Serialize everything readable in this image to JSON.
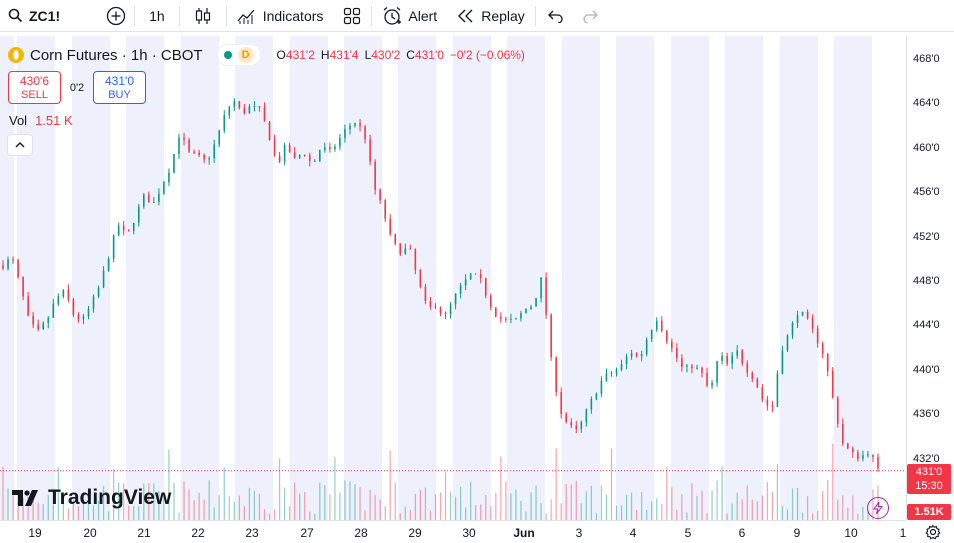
{
  "toolbar": {
    "symbol": "ZC1!",
    "interval": "1h",
    "indicators_label": "Indicators",
    "alert_label": "Alert",
    "replay_label": "Replay"
  },
  "legend": {
    "title": "Corn Futures · 1h · CBOT",
    "market_status_badge": "D",
    "open_key": "O",
    "open": "431'2",
    "high_key": "H",
    "high": "431'4",
    "low_key": "L",
    "low": "430'2",
    "close_key": "C",
    "close": "431'0",
    "change": "−0'2 (−0.06%)"
  },
  "trade": {
    "sell_price": "430'6",
    "sell_label": "SELL",
    "spread": "0'2",
    "buy_price": "431'0",
    "buy_label": "BUY"
  },
  "volume": {
    "label": "Vol",
    "value": "1.51 K"
  },
  "price_axis": {
    "ticks": [
      "468'0",
      "464'0",
      "460'0",
      "456'0",
      "452'0",
      "448'0",
      "444'0",
      "440'0",
      "436'0",
      "432'0"
    ],
    "last_price": "431'0",
    "countdown": "15:30",
    "volume_badge": "1.51K"
  },
  "time_axis": {
    "ticks": [
      "19",
      "20",
      "21",
      "22",
      "23",
      "27",
      "28",
      "29",
      "30",
      "Jun",
      "3",
      "4",
      "5",
      "6",
      "9",
      "10",
      "1"
    ]
  },
  "branding": {
    "logo_text": "TradingView"
  },
  "colors": {
    "up": "#089981",
    "down": "#f23645",
    "session_shade": "#eef1fb",
    "accent": "#2962ff"
  },
  "chart_data": {
    "type": "candlestick",
    "symbol": "ZC1!",
    "interval": "1h",
    "ylim": [
      428,
      469
    ],
    "x": [
      "19",
      "20",
      "21",
      "22",
      "23",
      "27",
      "28",
      "29",
      "30",
      "Jun",
      "3",
      "4",
      "5",
      "6",
      "9",
      "10"
    ],
    "close_path": [
      449.5,
      450.2,
      447.5,
      444.2,
      443.5,
      444.6,
      446.5,
      447.2,
      445.0,
      444.5,
      446.0,
      447.8,
      450.5,
      453.2,
      452.0,
      454.0,
      455.8,
      455.0,
      456.8,
      458.5,
      461.5,
      459.6,
      459.3,
      458.8,
      460.5,
      462.8,
      464.5,
      463.2,
      463.8,
      463.5,
      461.5,
      458.5,
      460.3,
      459.0,
      459.8,
      458.5,
      460.2,
      459.7,
      460.8,
      462.0,
      462.5,
      461.0,
      456.5,
      454.5,
      451.5,
      450.8,
      451.0,
      448.0,
      445.5,
      446.0,
      444.8,
      446.5,
      447.8,
      448.7,
      448.2,
      446.2,
      444.8,
      444.5,
      444.5,
      445.5,
      446.0,
      448.5,
      441.0,
      436.5,
      435.0,
      434.5,
      436.3,
      438.0,
      439.5,
      439.8,
      440.5,
      441.8,
      441.0,
      443.3,
      444.8,
      443.0,
      441.5,
      440.0,
      440.5,
      439.8,
      438.0,
      441.5,
      440.5,
      441.8,
      440.3,
      439.3,
      437.3,
      436.5,
      441.8,
      443.5,
      445.5,
      444.5,
      443.0,
      441.2,
      437.0,
      433.5,
      432.5,
      432.2,
      432.8,
      431.0
    ],
    "session_shade": true,
    "last_price_line": 431.0
  }
}
